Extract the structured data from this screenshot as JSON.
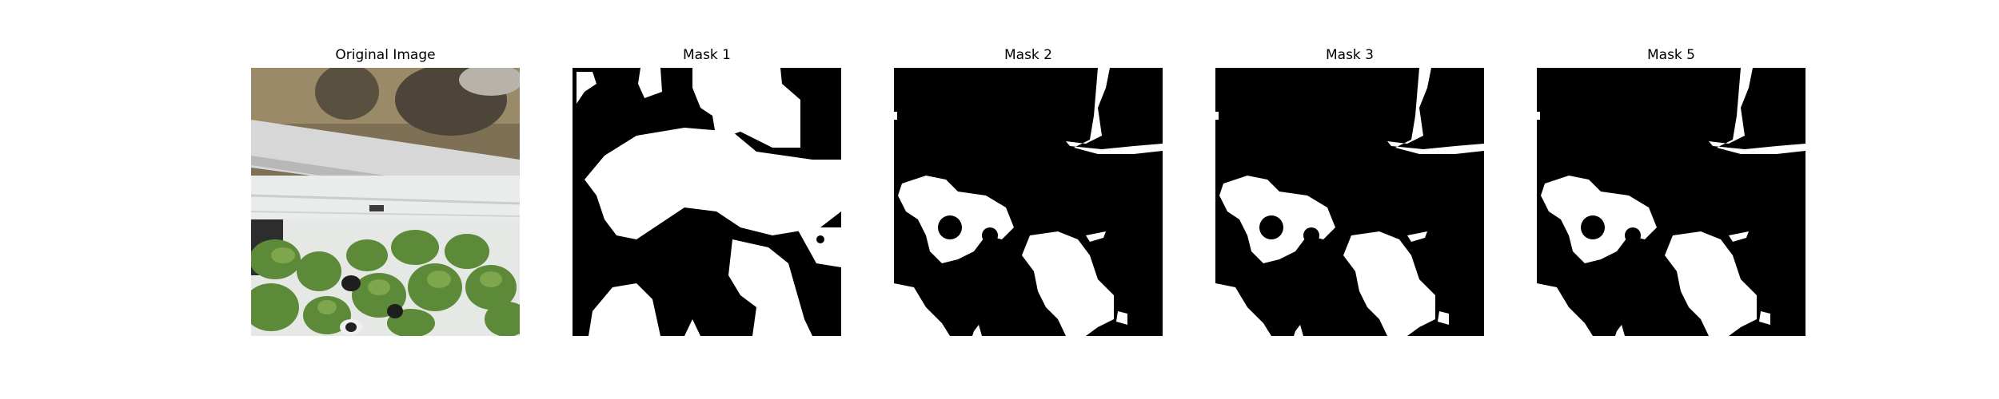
{
  "panels": [
    {
      "title": "Original Image",
      "kind": "photo",
      "depicts": "plants-photo"
    },
    {
      "title": "Mask 1",
      "kind": "mask",
      "depicts": "mask-1"
    },
    {
      "title": "Mask 2",
      "kind": "mask",
      "depicts": "mask-2"
    },
    {
      "title": "Mask 3",
      "kind": "mask",
      "depicts": "mask-3"
    },
    {
      "title": "Mask 5",
      "kind": "mask",
      "depicts": "mask-5"
    }
  ],
  "colors": {
    "mask_foreground": "#ffffff",
    "mask_background": "#000000",
    "leaf": "#5f8a3a",
    "ground": "#8a7a5e",
    "rail": "#d9d9d9"
  }
}
